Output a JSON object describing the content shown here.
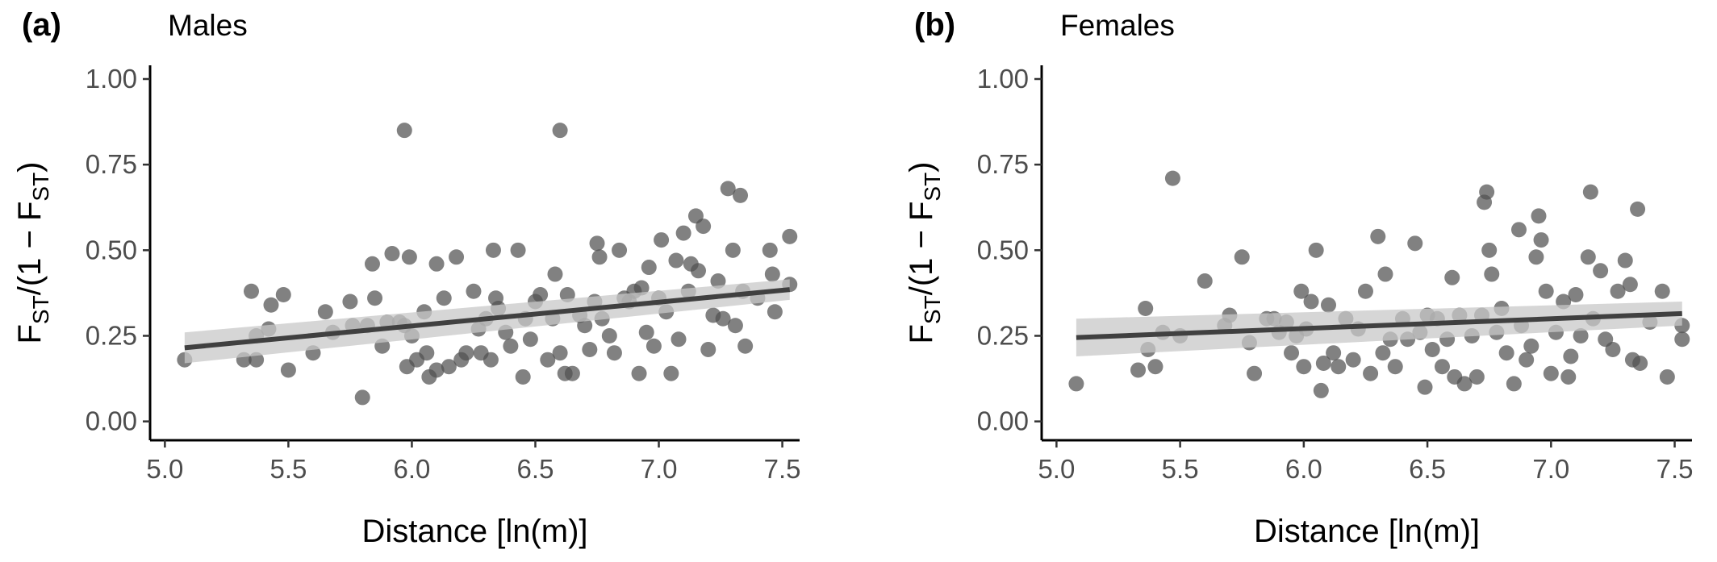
{
  "chart_data": [
    {
      "type": "scatter",
      "panel_label": "(a)",
      "title": "Males",
      "x_label": "Distance [ln(m)]",
      "y_label": [
        "F",
        "ST",
        "/(1 − F",
        "ST",
        ")"
      ],
      "color": "#505050",
      "xlim": [
        4.94,
        7.57
      ],
      "ylim": [
        -0.055,
        1.04
      ],
      "xticks": [
        {
          "value": 5,
          "label": "5.0"
        },
        {
          "value": 5.5,
          "label": "5.5"
        },
        {
          "value": 6,
          "label": "6.0"
        },
        {
          "value": 6.5,
          "label": "6.5"
        },
        {
          "value": 7,
          "label": "7.0"
        },
        {
          "value": 7.5,
          "label": "7.5"
        }
      ],
      "yticks": [
        {
          "value": 0,
          "label": "0.00"
        },
        {
          "value": 0.25,
          "label": "0.25"
        },
        {
          "value": 0.5,
          "label": "0.50"
        },
        {
          "value": 0.75,
          "label": "0.75"
        },
        {
          "value": 1,
          "label": "1.00"
        }
      ],
      "x": [
        5.08,
        5.32,
        5.35,
        5.37,
        5.37,
        5.42,
        5.43,
        5.48,
        5.5,
        5.6,
        5.65,
        5.68,
        5.75,
        5.76,
        5.8,
        5.82,
        5.84,
        5.85,
        5.88,
        5.9,
        5.92,
        5.95,
        5.97,
        5.97,
        5.98,
        5.99,
        6.0,
        6.02,
        6.05,
        6.06,
        6.07,
        6.1,
        6.1,
        6.13,
        6.15,
        6.18,
        6.2,
        6.22,
        6.25,
        6.27,
        6.28,
        6.3,
        6.32,
        6.33,
        6.34,
        6.35,
        6.38,
        6.4,
        6.43,
        6.45,
        6.46,
        6.48,
        6.5,
        6.52,
        6.55,
        6.57,
        6.58,
        6.6,
        6.6,
        6.62,
        6.63,
        6.65,
        6.68,
        6.7,
        6.72,
        6.74,
        6.75,
        6.76,
        6.77,
        6.8,
        6.82,
        6.84,
        6.86,
        6.88,
        6.9,
        6.92,
        6.93,
        6.95,
        6.96,
        6.98,
        7.0,
        7.01,
        7.03,
        7.05,
        7.07,
        7.08,
        7.1,
        7.12,
        7.13,
        7.15,
        7.16,
        7.18,
        7.2,
        7.22,
        7.24,
        7.26,
        7.28,
        7.3,
        7.31,
        7.33,
        7.34,
        7.35,
        7.4,
        7.45,
        7.46,
        7.47,
        7.53,
        7.53
      ],
      "values": [
        0.18,
        0.18,
        0.38,
        0.25,
        0.18,
        0.27,
        0.34,
        0.37,
        0.15,
        0.2,
        0.32,
        0.26,
        0.35,
        0.28,
        0.07,
        0.28,
        0.46,
        0.36,
        0.22,
        0.29,
        0.49,
        0.29,
        0.85,
        0.28,
        0.16,
        0.48,
        0.25,
        0.18,
        0.32,
        0.2,
        0.13,
        0.46,
        0.15,
        0.36,
        0.16,
        0.48,
        0.18,
        0.2,
        0.38,
        0.27,
        0.2,
        0.3,
        0.18,
        0.5,
        0.36,
        0.33,
        0.26,
        0.22,
        0.5,
        0.13,
        0.3,
        0.24,
        0.35,
        0.37,
        0.18,
        0.3,
        0.43,
        0.85,
        0.2,
        0.14,
        0.37,
        0.14,
        0.31,
        0.28,
        0.21,
        0.35,
        0.52,
        0.48,
        0.3,
        0.25,
        0.2,
        0.5,
        0.36,
        0.35,
        0.38,
        0.14,
        0.39,
        0.26,
        0.45,
        0.22,
        0.36,
        0.53,
        0.32,
        0.14,
        0.47,
        0.24,
        0.55,
        0.38,
        0.46,
        0.6,
        0.44,
        0.57,
        0.21,
        0.31,
        0.41,
        0.3,
        0.68,
        0.5,
        0.28,
        0.66,
        0.38,
        0.22,
        0.36,
        0.5,
        0.43,
        0.32,
        0.54,
        0.4
      ],
      "trend": {
        "color": "#404040",
        "band_color": "#c8c8c8",
        "x": [
          5.08,
          7.53
        ],
        "values": [
          0.215,
          0.385
        ],
        "lower": [
          0.17,
          0.355
        ],
        "upper": [
          0.26,
          0.415
        ]
      }
    },
    {
      "type": "scatter",
      "panel_label": "(b)",
      "title": "Females",
      "x_label": "Distance [ln(m)]",
      "y_label": [
        "F",
        "ST",
        "/(1 − F",
        "ST",
        ")"
      ],
      "color": "#505050",
      "xlim": [
        4.94,
        7.57
      ],
      "ylim": [
        -0.055,
        1.04
      ],
      "xticks": [
        {
          "value": 5,
          "label": "5.0"
        },
        {
          "value": 5.5,
          "label": "5.5"
        },
        {
          "value": 6,
          "label": "6.0"
        },
        {
          "value": 6.5,
          "label": "6.5"
        },
        {
          "value": 7,
          "label": "7.0"
        },
        {
          "value": 7.5,
          "label": "7.5"
        }
      ],
      "yticks": [
        {
          "value": 0,
          "label": "0.00"
        },
        {
          "value": 0.25,
          "label": "0.25"
        },
        {
          "value": 0.5,
          "label": "0.50"
        },
        {
          "value": 0.75,
          "label": "0.75"
        },
        {
          "value": 1,
          "label": "1.00"
        }
      ],
      "x": [
        5.08,
        5.33,
        5.36,
        5.37,
        5.4,
        5.43,
        5.47,
        5.5,
        5.6,
        5.68,
        5.7,
        5.75,
        5.78,
        5.8,
        5.85,
        5.88,
        5.9,
        5.93,
        5.95,
        5.97,
        5.99,
        6.0,
        6.01,
        6.03,
        6.05,
        6.07,
        6.08,
        6.1,
        6.12,
        6.14,
        6.17,
        6.2,
        6.22,
        6.25,
        6.27,
        6.3,
        6.32,
        6.33,
        6.35,
        6.37,
        6.4,
        6.42,
        6.45,
        6.47,
        6.49,
        6.5,
        6.52,
        6.54,
        6.56,
        6.58,
        6.6,
        6.61,
        6.63,
        6.65,
        6.68,
        6.7,
        6.72,
        6.73,
        6.74,
        6.75,
        6.76,
        6.78,
        6.8,
        6.82,
        6.85,
        6.87,
        6.88,
        6.9,
        6.92,
        6.94,
        6.95,
        6.96,
        6.98,
        7.0,
        7.02,
        7.05,
        7.07,
        7.08,
        7.1,
        7.12,
        7.15,
        7.16,
        7.17,
        7.2,
        7.22,
        7.25,
        7.27,
        7.3,
        7.32,
        7.33,
        7.35,
        7.36,
        7.4,
        7.45,
        7.47,
        7.53,
        7.53
      ],
      "values": [
        0.11,
        0.15,
        0.33,
        0.21,
        0.16,
        0.26,
        0.71,
        0.25,
        0.41,
        0.28,
        0.31,
        0.48,
        0.23,
        0.14,
        0.3,
        0.3,
        0.26,
        0.29,
        0.2,
        0.25,
        0.38,
        0.16,
        0.27,
        0.35,
        0.5,
        0.09,
        0.17,
        0.34,
        0.2,
        0.16,
        0.3,
        0.18,
        0.27,
        0.38,
        0.14,
        0.54,
        0.2,
        0.43,
        0.24,
        0.16,
        0.3,
        0.24,
        0.52,
        0.26,
        0.1,
        0.31,
        0.21,
        0.3,
        0.16,
        0.24,
        0.42,
        0.13,
        0.31,
        0.11,
        0.25,
        0.13,
        0.31,
        0.64,
        0.67,
        0.5,
        0.43,
        0.26,
        0.33,
        0.2,
        0.11,
        0.56,
        0.28,
        0.18,
        0.22,
        0.48,
        0.6,
        0.53,
        0.38,
        0.14,
        0.26,
        0.35,
        0.13,
        0.19,
        0.37,
        0.25,
        0.48,
        0.67,
        0.3,
        0.44,
        0.24,
        0.21,
        0.38,
        0.47,
        0.4,
        0.18,
        0.62,
        0.17,
        0.29,
        0.38,
        0.13,
        0.28,
        0.24
      ],
      "trend": {
        "color": "#404040",
        "band_color": "#c8c8c8",
        "x": [
          5.08,
          7.53
        ],
        "values": [
          0.245,
          0.315
        ],
        "lower": [
          0.19,
          0.28
        ],
        "upper": [
          0.3,
          0.35
        ]
      }
    }
  ]
}
